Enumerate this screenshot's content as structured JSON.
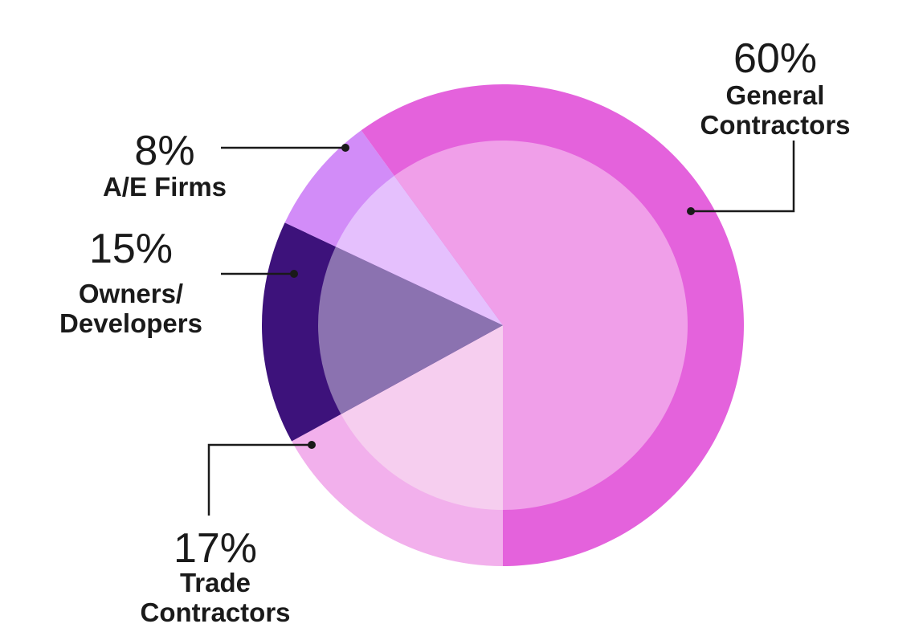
{
  "chart_data": {
    "type": "pie",
    "categories": [
      "Trade Contractors",
      "Owners/ Developers",
      "A/E Firms",
      "General Contractors"
    ],
    "values": [
      17,
      15,
      8,
      60
    ],
    "value_labels": [
      "17%",
      "15%",
      "8%",
      "60%"
    ],
    "colors": [
      "#f2b0ec",
      "#3d127b",
      "#d28cf8",
      "#e462dc"
    ],
    "inner_colors": [
      "#f6ceef",
      "#8b72b0",
      "#e5c0fd",
      "#f09fe9"
    ]
  }
}
